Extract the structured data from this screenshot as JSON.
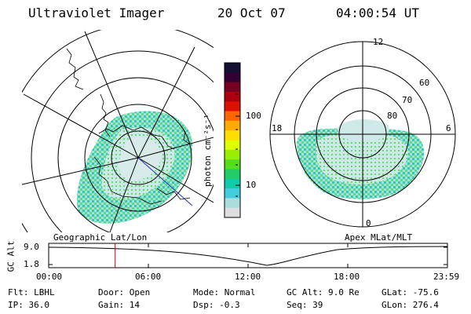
{
  "header": {
    "instrument": "Ultraviolet Imager",
    "date": "20 Oct 07",
    "time": "04:00:54 UT"
  },
  "left_map": {
    "label": "Geographic Lat/Lon"
  },
  "right_map": {
    "label": "Apex MLat/MLT",
    "mlt_labels": {
      "top": "12",
      "left": "18",
      "right": "6",
      "bottom": "0"
    },
    "lat_labels": [
      "60",
      "70",
      "80"
    ]
  },
  "colorbar": {
    "unit": "photon cm⁻²s⁻¹",
    "ticks": [
      "100",
      "10"
    ],
    "colors": [
      "#111133",
      "#330033",
      "#770022",
      "#aa0011",
      "#dd1100",
      "#ff6600",
      "#ffaa00",
      "#ffdd00",
      "#ddff00",
      "#99ee00",
      "#55dd22",
      "#22cc66",
      "#11ccaa",
      "#44ccdd",
      "#aadddd",
      "#dddddd"
    ]
  },
  "altitude_strip": {
    "axis_label": "GC Alt",
    "y_ticks": [
      "9.0",
      "1.8"
    ],
    "x_ticks": [
      "00:00",
      "06:00",
      "12:00",
      "18:00",
      "23:59"
    ],
    "current_time_marker_hours": 4.0,
    "marker_color": "#cc0000"
  },
  "info": {
    "row1": {
      "flt": "Flt: LBHL",
      "door": "Door: Open",
      "mode": "Mode: Normal",
      "gcalt": "GC Alt: 9.0 Re",
      "glat": "GLat: -75.6"
    },
    "row2": {
      "ip": "IP: 36.0",
      "gain": "Gain: 14",
      "dsp": "Dsp:  -0.3",
      "seq": "Seq: 39",
      "glon": "GLon: 276.4"
    }
  }
}
